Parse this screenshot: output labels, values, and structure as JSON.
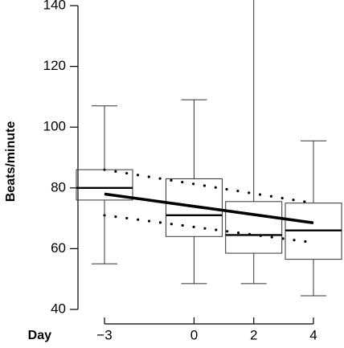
{
  "chart_data": {
    "type": "box",
    "ylabel": "Beats/minute",
    "xlabel": "Day",
    "ylim": [
      40,
      140
    ],
    "yticks": [
      40,
      60,
      80,
      100,
      120,
      140
    ],
    "categories": [
      "−3",
      "0",
      "2",
      "4"
    ],
    "x": [
      -3,
      0,
      2,
      4
    ],
    "boxes": [
      {
        "day": -3,
        "whisker_low": 55,
        "q1": 76,
        "median": 80,
        "q3": 86,
        "whisker_high": 107
      },
      {
        "day": 0,
        "whisker_low": 48.5,
        "q1": 64,
        "median": 71,
        "q3": 83,
        "whisker_high": 109
      },
      {
        "day": 2,
        "whisker_low": 48.5,
        "q1": 58.5,
        "median": 64.5,
        "q3": 75.5,
        "whisker_high": 142
      },
      {
        "day": 4,
        "whisker_low": 44.5,
        "q1": 56.5,
        "median": 66,
        "q3": 75,
        "whisker_high": 95.5
      }
    ],
    "trend_line": {
      "start": {
        "day": -3,
        "value": 78
      },
      "end": {
        "day": 4,
        "value": 68.5
      }
    },
    "confidence_band": {
      "upper": {
        "start": {
          "day": -3,
          "value": 86
        },
        "end": {
          "day": 4,
          "value": 75
        }
      },
      "lower": {
        "start": {
          "day": -3,
          "value": 71
        },
        "end": {
          "day": 4,
          "value": 62
        }
      }
    },
    "colors": {
      "axis": "#000000",
      "box": "#333333",
      "trend": "#000000",
      "band": "#000000"
    }
  }
}
